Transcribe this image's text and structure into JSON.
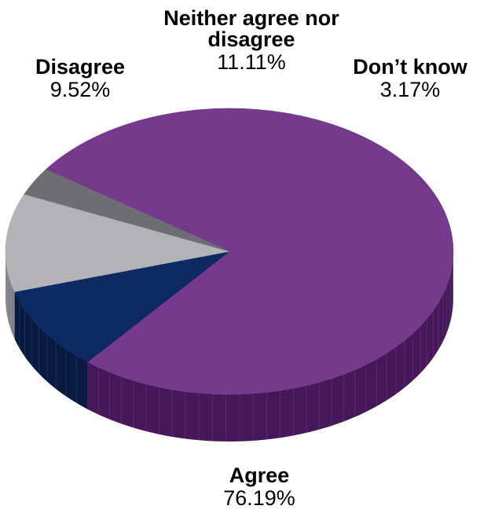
{
  "chart_data": {
    "type": "pie",
    "slices": [
      {
        "label": "Agree",
        "value": 76.19,
        "value_label": "76.19%",
        "color": "#763a8c",
        "side_color": "#46185a"
      },
      {
        "label": "Disagree",
        "value": 9.52,
        "value_label": "9.52%",
        "color": "#0d2a63",
        "side_color": "#081a40"
      },
      {
        "label": "Neither agree nor disagree",
        "value": 11.11,
        "value_label": "11.11%",
        "color": "#b1b3b6",
        "side_color": "#808285"
      },
      {
        "label": "Don’t know",
        "value": 3.17,
        "value_label": "3.17%",
        "color": "#6d6e71",
        "side_color": "#4a4b4d"
      }
    ]
  }
}
